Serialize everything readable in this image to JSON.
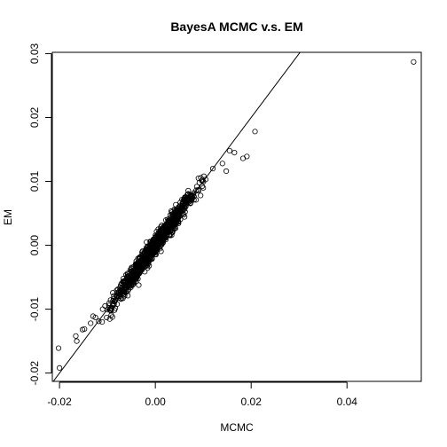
{
  "chart_data": {
    "type": "scatter",
    "title": "BayesA MCMC v.s. EM",
    "xlabel": "MCMC",
    "ylabel": "EM",
    "xlim": [
      -0.0215,
      0.0555
    ],
    "ylim": [
      -0.0213,
      0.0302
    ],
    "xticks": [
      -0.02,
      0.0,
      0.02,
      0.04
    ],
    "xtick_labels": [
      "-0.02",
      "0.00",
      "0.02",
      "0.04"
    ],
    "yticks": [
      -0.02,
      -0.01,
      0.0,
      0.01,
      0.02,
      0.03
    ],
    "ytick_labels": [
      "-0.02",
      "-0.01",
      "0.00",
      "0.01",
      "0.02",
      "0.03"
    ],
    "grid": false,
    "legend": "none",
    "reference_line": {
      "type": "identity",
      "intercept": 0,
      "slope": 1
    },
    "marker": "open-circle",
    "colors": {
      "points": "#000000",
      "line": "#000000",
      "background": "#ffffff"
    },
    "points": {
      "outliers": [
        {
          "x": 0.0539,
          "y": 0.0287
        },
        {
          "x": 0.0208,
          "y": 0.0178
        },
        {
          "x": 0.0191,
          "y": 0.0139
        },
        {
          "x": 0.0183,
          "y": 0.0136
        },
        {
          "x": 0.0165,
          "y": 0.0145
        },
        {
          "x": 0.0155,
          "y": 0.0148
        },
        {
          "x": 0.014,
          "y": 0.0128
        },
        {
          "x": 0.0148,
          "y": 0.0116
        },
        {
          "x": 0.012,
          "y": 0.012
        },
        {
          "x": -0.0202,
          "y": -0.0161
        },
        {
          "x": -0.02,
          "y": -0.0192
        },
        {
          "x": -0.0166,
          "y": -0.0142
        },
        {
          "x": -0.0164,
          "y": -0.015
        },
        {
          "x": -0.0148,
          "y": -0.0131
        },
        {
          "x": -0.0152,
          "y": -0.0132
        },
        {
          "x": -0.0135,
          "y": -0.0122
        },
        {
          "x": -0.013,
          "y": -0.0111
        },
        {
          "x": -0.0125,
          "y": -0.0113
        },
        {
          "x": -0.0118,
          "y": -0.0119
        },
        {
          "x": 0.009,
          "y": 0.0105
        },
        {
          "x": 0.0105,
          "y": 0.0103
        },
        {
          "x": -0.0105,
          "y": -0.0095
        },
        {
          "x": -0.0095,
          "y": -0.0101
        }
      ],
      "cluster": {
        "n": 1100,
        "x_range": [
          -0.0115,
          0.0115
        ],
        "slope": 1.02,
        "intercept": 0.0,
        "spread_sd": 0.0012,
        "x_sd": 0.0042
      }
    }
  }
}
